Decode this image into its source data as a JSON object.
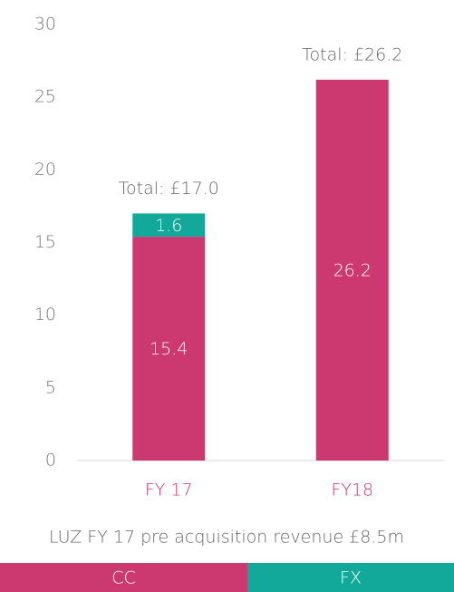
{
  "chart_data": {
    "type": "stacked_bar",
    "categories": [
      "FY 17",
      "FY18"
    ],
    "series": [
      {
        "name": "CC",
        "color": "#cc3870",
        "values": [
          15.4,
          26.2
        ]
      },
      {
        "name": "FX",
        "color": "#12a89a",
        "values": [
          1.6,
          null
        ]
      }
    ],
    "annotations": [
      "Total: £17.0",
      "Total: £26.2"
    ],
    "footnote": "LUZ FY 17 pre acquisition revenue £8.5m",
    "ylim": [
      0,
      30
    ],
    "yticks": [
      0,
      5,
      10,
      15,
      20,
      25,
      30
    ],
    "legend": "bottom"
  }
}
